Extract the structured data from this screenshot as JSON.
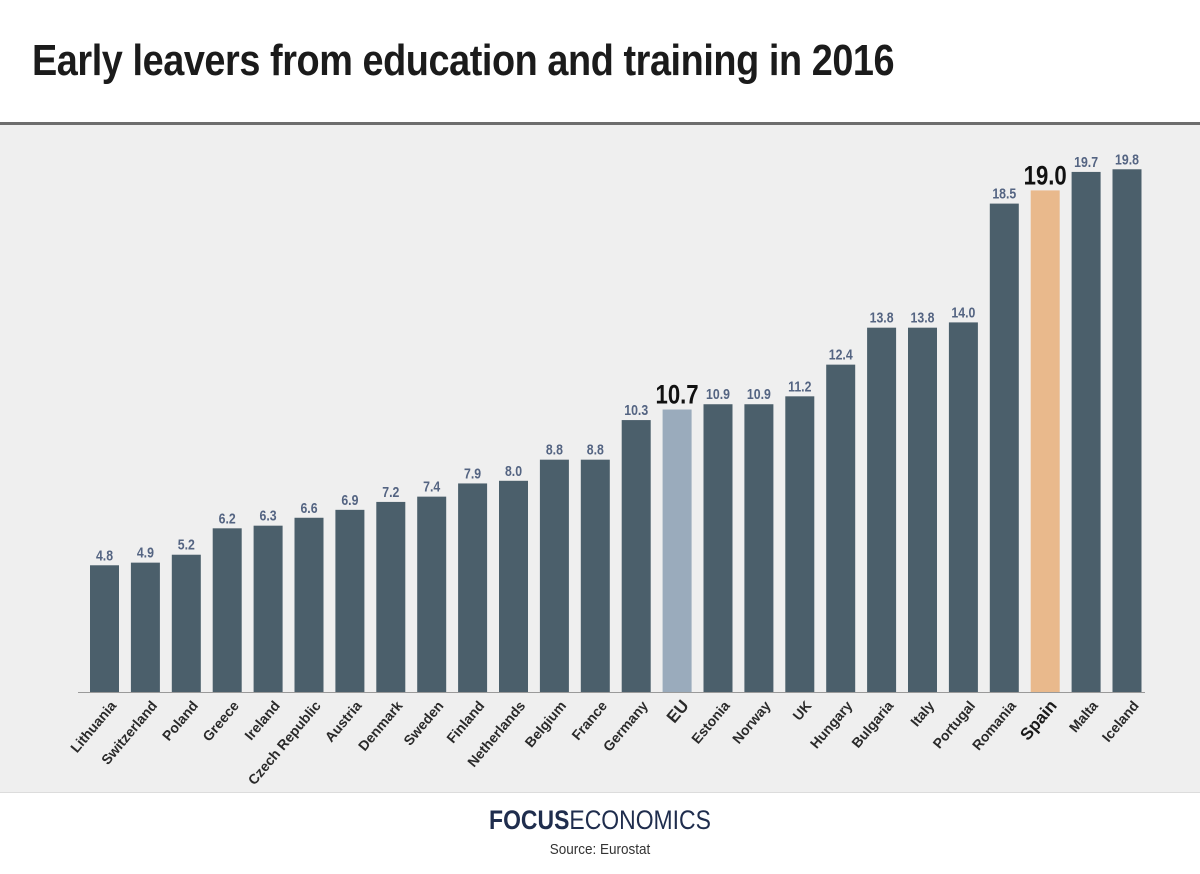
{
  "header": {
    "title": "Early leavers from education and training in 2016"
  },
  "colors": {
    "default": "#4b5f6b",
    "eu": "#9aabbc",
    "spain": "#e9b98c",
    "label": "#546482",
    "highlight_label": "#111111"
  },
  "chart_data": {
    "type": "bar",
    "title": "Early leavers from education and training in 2016",
    "xlabel": "",
    "ylabel": "",
    "ylim": [
      0,
      20
    ],
    "grid": false,
    "categories": [
      "Lithuania",
      "Switzerland",
      "Poland",
      "Greece",
      "Ireland",
      "Czech Republic",
      "Austria",
      "Denmark",
      "Sweden",
      "Finland",
      "Netherlands",
      "Belgium",
      "France",
      "Germany",
      "EU",
      "Estonia",
      "Norway",
      "UK",
      "Hungary",
      "Bulgaria",
      "Italy",
      "Portugal",
      "Romania",
      "Spain",
      "Malta",
      "Iceland"
    ],
    "values": [
      4.8,
      4.9,
      5.2,
      6.2,
      6.3,
      6.6,
      6.9,
      7.2,
      7.4,
      7.9,
      8.0,
      8.8,
      8.8,
      10.3,
      10.7,
      10.9,
      10.9,
      11.2,
      12.4,
      13.8,
      13.8,
      14.0,
      18.5,
      19.0,
      19.7,
      19.8
    ],
    "value_labels": [
      "4.8",
      "4.9",
      "5.2",
      "6.2",
      "6.3",
      "6.6",
      "6.9",
      "7.2",
      "7.4",
      "7.9",
      "8.0",
      "8.8",
      "8.8",
      "10.3",
      "10.7",
      "10.9",
      "10.9",
      "11.2",
      "12.4",
      "13.8",
      "13.8",
      "14.0",
      "18.5",
      "19.0",
      "19.7",
      "19.8"
    ],
    "highlighted": {
      "EU": "eu",
      "Spain": "spain"
    }
  },
  "footer": {
    "brand_bold": "FOCUS",
    "brand_light": "ECONOMICS",
    "source": "Source: Eurostat"
  }
}
